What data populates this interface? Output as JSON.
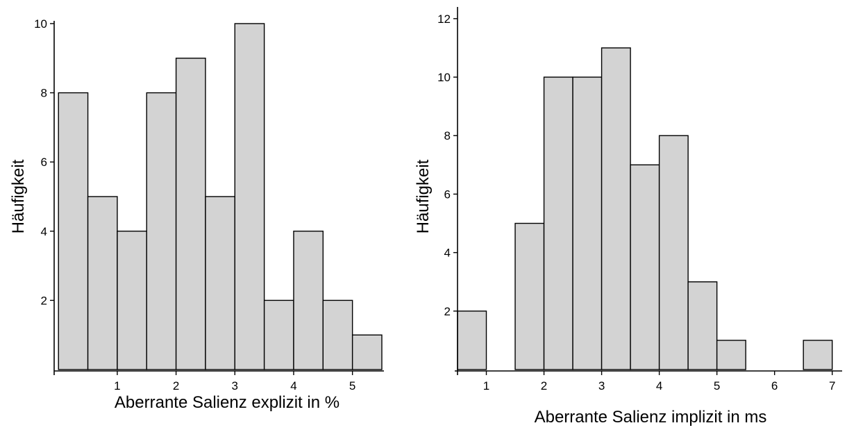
{
  "chart_data": [
    {
      "type": "bar",
      "subtype": "histogram",
      "xlabel": "Aberrante Salienz explizit in %",
      "ylabel": "Häufigkeit",
      "bin_width": 0.5,
      "bins": [
        {
          "start": 0.0,
          "end": 0.5,
          "count": 8
        },
        {
          "start": 0.5,
          "end": 1.0,
          "count": 5
        },
        {
          "start": 1.0,
          "end": 1.5,
          "count": 4
        },
        {
          "start": 1.5,
          "end": 2.0,
          "count": 8
        },
        {
          "start": 2.0,
          "end": 2.5,
          "count": 9
        },
        {
          "start": 2.5,
          "end": 3.0,
          "count": 5
        },
        {
          "start": 3.0,
          "end": 3.5,
          "count": 10
        },
        {
          "start": 3.5,
          "end": 4.0,
          "count": 2
        },
        {
          "start": 4.0,
          "end": 4.5,
          "count": 4
        },
        {
          "start": 4.5,
          "end": 5.0,
          "count": 2
        },
        {
          "start": 5.0,
          "end": 5.5,
          "count": 1
        }
      ],
      "xlim": [
        -0.05,
        5.5
      ],
      "ylim": [
        0,
        10.2
      ],
      "xticks": [
        "1",
        "2",
        "3",
        "4",
        "5"
      ],
      "yticks": [
        "2",
        "4",
        "6",
        "8",
        "10"
      ],
      "grid": false,
      "legend": "none"
    },
    {
      "type": "bar",
      "subtype": "histogram",
      "xlabel": "Aberrante Salienz implizit in ms",
      "ylabel": "Häufigkeit",
      "bin_width": 0.5,
      "bins": [
        {
          "start": 0.5,
          "end": 1.0,
          "count": 2
        },
        {
          "start": 1.0,
          "end": 1.5,
          "count": 0
        },
        {
          "start": 1.5,
          "end": 2.0,
          "count": 5
        },
        {
          "start": 2.0,
          "end": 2.5,
          "count": 10
        },
        {
          "start": 2.5,
          "end": 3.0,
          "count": 10
        },
        {
          "start": 3.0,
          "end": 3.5,
          "count": 11
        },
        {
          "start": 3.5,
          "end": 4.0,
          "count": 7
        },
        {
          "start": 4.0,
          "end": 4.5,
          "count": 8
        },
        {
          "start": 4.5,
          "end": 5.0,
          "count": 3
        },
        {
          "start": 5.0,
          "end": 5.5,
          "count": 1
        },
        {
          "start": 5.5,
          "end": 6.0,
          "count": 0
        },
        {
          "start": 6.0,
          "end": 6.5,
          "count": 0
        },
        {
          "start": 6.5,
          "end": 7.0,
          "count": 1
        }
      ],
      "xlim": [
        0.5,
        7.1
      ],
      "ylim": [
        0,
        12.4
      ],
      "xticks": [
        "1",
        "2",
        "3",
        "4",
        "5",
        "6",
        "7"
      ],
      "yticks": [
        "2",
        "4",
        "6",
        "8",
        "10",
        "12"
      ],
      "grid": false,
      "legend": "none"
    }
  ]
}
